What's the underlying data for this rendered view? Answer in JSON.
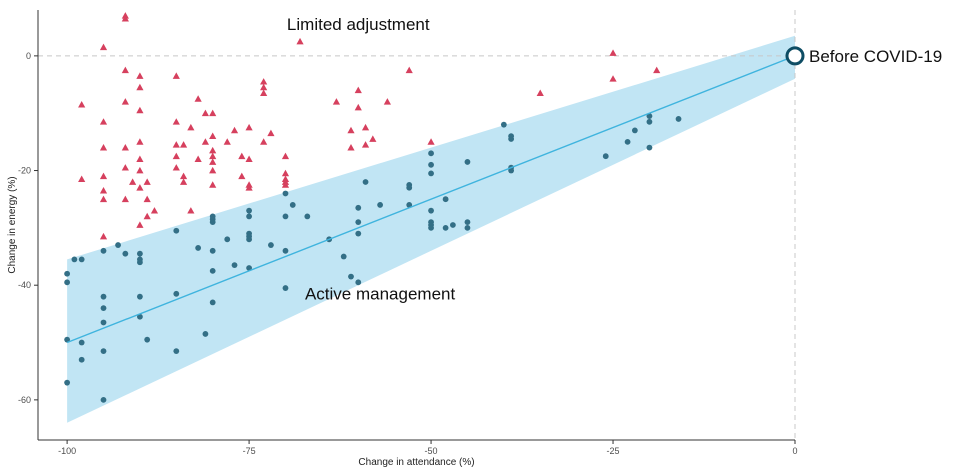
{
  "chart_data": {
    "type": "scatter",
    "xlabel": "Change in attendance (%)",
    "ylabel": "Change in energy (%)",
    "xlim": [
      -104,
      0
    ],
    "ylim": [
      -67,
      8
    ],
    "x_ticks": [
      -100,
      -75,
      -50,
      -25,
      0
    ],
    "y_ticks": [
      0,
      -20,
      -40,
      -60
    ],
    "grid": false,
    "reference_lines": {
      "x": 0,
      "y": 0,
      "style": "dashed"
    },
    "colors": {
      "limited_adjustment": "#d6405e",
      "active_management": "#336f86",
      "fit_line": "#3fb4de",
      "band": "#c1e5f4",
      "reference_point": "#0e4d64"
    },
    "reference_point": {
      "label": "Before COVID-19",
      "x": 0,
      "y": 0
    },
    "annotations": [
      {
        "text": "Limited adjustment",
        "x": -60,
        "y": 4.5
      },
      {
        "text": "Active management",
        "x": -57,
        "y": -42.5
      }
    ],
    "fit_line": {
      "x": [
        -100,
        0
      ],
      "y": [
        -50,
        0
      ]
    },
    "confidence_band": {
      "x": [
        -100,
        0
      ],
      "upper": [
        -35.5,
        3.5
      ],
      "lower": [
        -64,
        -4
      ]
    },
    "series": [
      {
        "marker": "triangle",
        "points": [
          [
            -92,
            7
          ],
          [
            -92,
            6.5
          ],
          [
            -95,
            1.5
          ],
          [
            -98,
            -8.5
          ],
          [
            -98,
            -21.5
          ],
          [
            -95,
            -11.5
          ],
          [
            -95,
            -16
          ],
          [
            -95,
            -21
          ],
          [
            -95,
            -23.5
          ],
          [
            -95,
            -25
          ],
          [
            -95,
            -31.5
          ],
          [
            -92,
            -2.5
          ],
          [
            -92,
            -16
          ],
          [
            -92,
            -19.5
          ],
          [
            -92,
            -25
          ],
          [
            -91,
            -22
          ],
          [
            -90,
            -3.5
          ],
          [
            -90,
            -5.5
          ],
          [
            -90,
            -9.5
          ],
          [
            -90,
            -15
          ],
          [
            -90,
            -18
          ],
          [
            -90,
            -20
          ],
          [
            -90,
            -23
          ],
          [
            -89,
            -25
          ],
          [
            -89,
            -28
          ],
          [
            -90,
            -29.5
          ],
          [
            -89,
            -22
          ],
          [
            -88,
            -27
          ],
          [
            -92,
            -8
          ],
          [
            -85,
            -3.5
          ],
          [
            -85,
            -11.5
          ],
          [
            -85,
            -15.5
          ],
          [
            -85,
            -17.5
          ],
          [
            -85,
            -19.5
          ],
          [
            -84,
            -21
          ],
          [
            -84,
            -22
          ],
          [
            -83,
            -27
          ],
          [
            -83,
            -12.5
          ],
          [
            -84,
            -15.5
          ],
          [
            -82,
            -7.5
          ],
          [
            -82,
            -18
          ],
          [
            -81,
            -15
          ],
          [
            -81,
            -10
          ],
          [
            -80,
            -10
          ],
          [
            -80,
            -14
          ],
          [
            -80,
            -16.5
          ],
          [
            -80,
            -17.5
          ],
          [
            -80,
            -18.5
          ],
          [
            -80,
            -20
          ],
          [
            -80,
            -22.5
          ],
          [
            -78,
            -15
          ],
          [
            -77,
            -13
          ],
          [
            -76,
            -17.5
          ],
          [
            -76,
            -21
          ],
          [
            -75,
            -12.5
          ],
          [
            -75,
            -18
          ],
          [
            -75,
            -22.5
          ],
          [
            -75,
            -23
          ],
          [
            -73,
            -4.5
          ],
          [
            -73,
            -5.5
          ],
          [
            -73,
            -6.5
          ],
          [
            -73,
            -15
          ],
          [
            -72,
            -13.5
          ],
          [
            -70,
            -17.5
          ],
          [
            -70,
            -20.5
          ],
          [
            -70,
            -21.5
          ],
          [
            -70,
            -22
          ],
          [
            -70,
            -22.5
          ],
          [
            -68,
            2.5
          ],
          [
            -63,
            -8
          ],
          [
            -61,
            -13
          ],
          [
            -61,
            -16
          ],
          [
            -60,
            -6
          ],
          [
            -60,
            -9
          ],
          [
            -59,
            -12.5
          ],
          [
            -59,
            -15.5
          ],
          [
            -58,
            -14.5
          ],
          [
            -56,
            -8
          ],
          [
            -53,
            -2.5
          ],
          [
            -50,
            -15
          ],
          [
            -35,
            -6.5
          ],
          [
            -25,
            0.5
          ],
          [
            -25,
            -4
          ],
          [
            -19,
            -2.5
          ]
        ]
      },
      {
        "marker": "circle",
        "points": [
          [
            -100,
            -38
          ],
          [
            -100,
            -39.5
          ],
          [
            -100,
            -49.5
          ],
          [
            -100,
            -57
          ],
          [
            -98,
            -35.5
          ],
          [
            -98,
            -50
          ],
          [
            -98,
            -53
          ],
          [
            -99,
            -35.5
          ],
          [
            -95,
            -34
          ],
          [
            -95,
            -42
          ],
          [
            -95,
            -44
          ],
          [
            -95,
            -46.5
          ],
          [
            -95,
            -51.5
          ],
          [
            -95,
            -60
          ],
          [
            -93,
            -33
          ],
          [
            -92,
            -34.5
          ],
          [
            -90,
            -34.5
          ],
          [
            -90,
            -35.5
          ],
          [
            -90,
            -36
          ],
          [
            -90,
            -45.5
          ],
          [
            -90,
            -42
          ],
          [
            -89,
            -49.5
          ],
          [
            -85,
            -30.5
          ],
          [
            -85,
            -41.5
          ],
          [
            -85,
            -51.5
          ],
          [
            -82,
            -33.5
          ],
          [
            -81,
            -48.5
          ],
          [
            -80,
            -28
          ],
          [
            -80,
            -28.5
          ],
          [
            -80,
            -29
          ],
          [
            -80,
            -34
          ],
          [
            -80,
            -37.5
          ],
          [
            -80,
            -43
          ],
          [
            -78,
            -32
          ],
          [
            -77,
            -36.5
          ],
          [
            -75,
            -27
          ],
          [
            -75,
            -28
          ],
          [
            -75,
            -31
          ],
          [
            -75,
            -31.5
          ],
          [
            -75,
            -32
          ],
          [
            -75,
            -37
          ],
          [
            -72,
            -33
          ],
          [
            -70,
            -24
          ],
          [
            -70,
            -28
          ],
          [
            -70,
            -34
          ],
          [
            -70,
            -40.5
          ],
          [
            -69,
            -26
          ],
          [
            -67,
            -28
          ],
          [
            -64,
            -32
          ],
          [
            -62,
            -35
          ],
          [
            -60,
            -26.5
          ],
          [
            -60,
            -29
          ],
          [
            -60,
            -31
          ],
          [
            -59,
            -22
          ],
          [
            -61,
            -38.5
          ],
          [
            -60,
            -39.5
          ],
          [
            -57,
            -26
          ],
          [
            -53,
            -22.5
          ],
          [
            -53,
            -23
          ],
          [
            -53,
            -26
          ],
          [
            -50,
            -17
          ],
          [
            -50,
            -19
          ],
          [
            -50,
            -20.5
          ],
          [
            -50,
            -27
          ],
          [
            -50,
            -29
          ],
          [
            -50,
            -29.5
          ],
          [
            -50,
            -30
          ],
          [
            -48,
            -25
          ],
          [
            -48,
            -30
          ],
          [
            -47,
            -29.5
          ],
          [
            -45,
            -18.5
          ],
          [
            -45,
            -29
          ],
          [
            -45,
            -30
          ],
          [
            -40,
            -12
          ],
          [
            -39,
            -14
          ],
          [
            -39,
            -14.5
          ],
          [
            -39,
            -19.5
          ],
          [
            -39,
            -20
          ],
          [
            -26,
            -17.5
          ],
          [
            -23,
            -15
          ],
          [
            -22,
            -13
          ],
          [
            -20,
            -10.5
          ],
          [
            -20,
            -11.5
          ],
          [
            -20,
            -16
          ],
          [
            -16,
            -11
          ]
        ]
      }
    ]
  }
}
